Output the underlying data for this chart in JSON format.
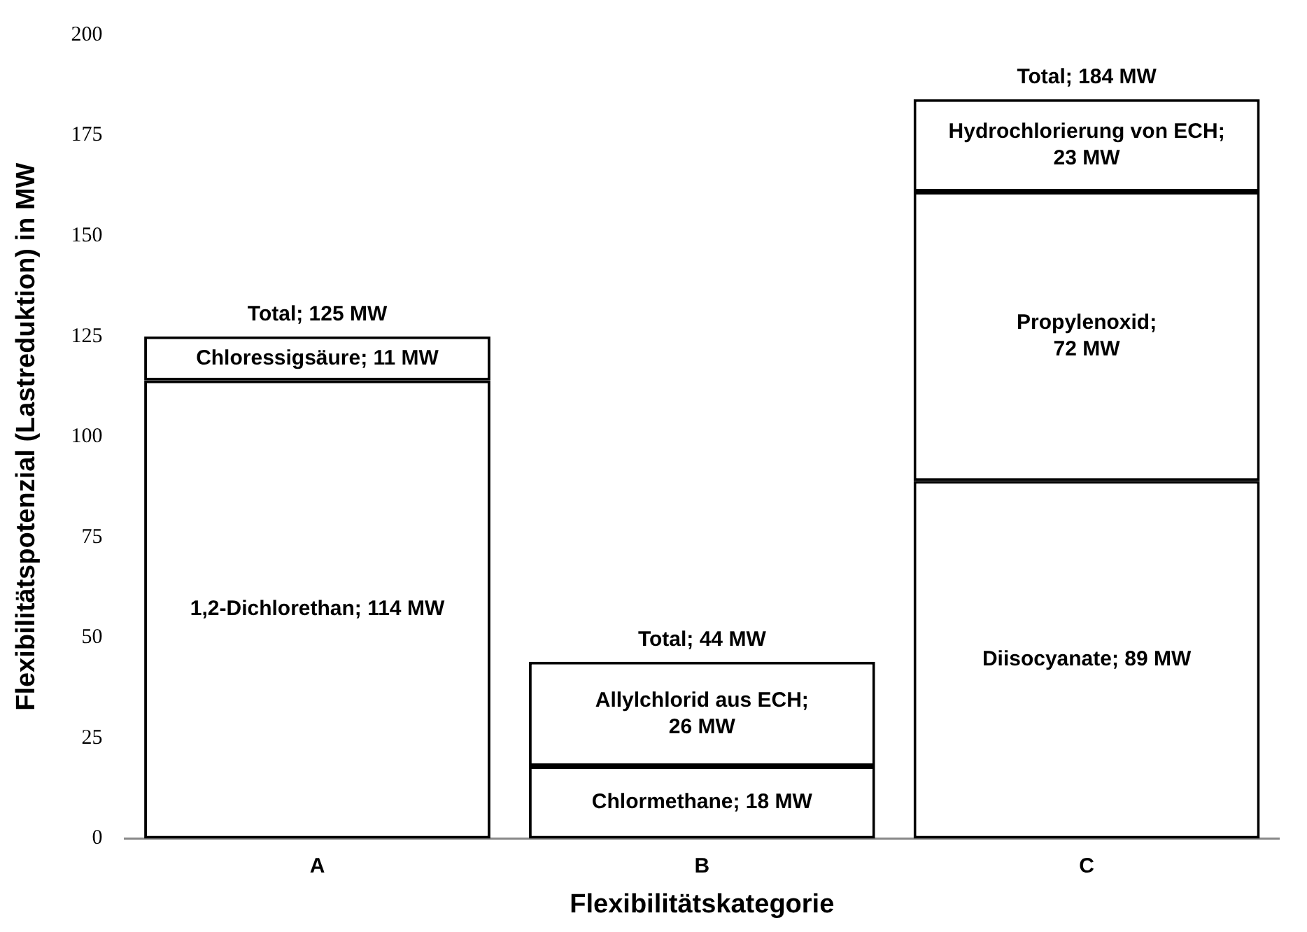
{
  "chart_data": {
    "type": "bar",
    "stacked": true,
    "xlabel": "Flexibilitätskategorie",
    "ylabel": "Flexibilitätspotenzial (Lastreduktion) in MW",
    "categories": [
      "A",
      "B",
      "C"
    ],
    "series": [
      {
        "color": "#ffffff",
        "values": [
          114,
          18,
          89
        ],
        "value_labels": [
          "1,2-Dichlorethan; 114 MW",
          "Chlormethane; 18 MW",
          "Diisocyanate; 89 MW"
        ]
      },
      {
        "color": "#ffffff",
        "values": [
          11,
          26,
          72
        ],
        "value_labels": [
          "Chloressigsäure; 11 MW",
          "Allylchlorid aus ECH;\n26 MW",
          "Propylenoxid;\n72 MW"
        ]
      },
      {
        "color": "#ffffff",
        "values": [
          null,
          null,
          23
        ],
        "value_labels": [
          null,
          null,
          "Hydrochlorierung von ECH;\n23 MW"
        ]
      }
    ],
    "totals": [
      "Total; 125 MW",
      "Total; 44 MW",
      "Total; 184 MW"
    ],
    "ylim": [
      0,
      200
    ],
    "yticks": [
      0,
      25,
      50,
      75,
      100,
      125,
      150,
      175,
      200
    ]
  }
}
